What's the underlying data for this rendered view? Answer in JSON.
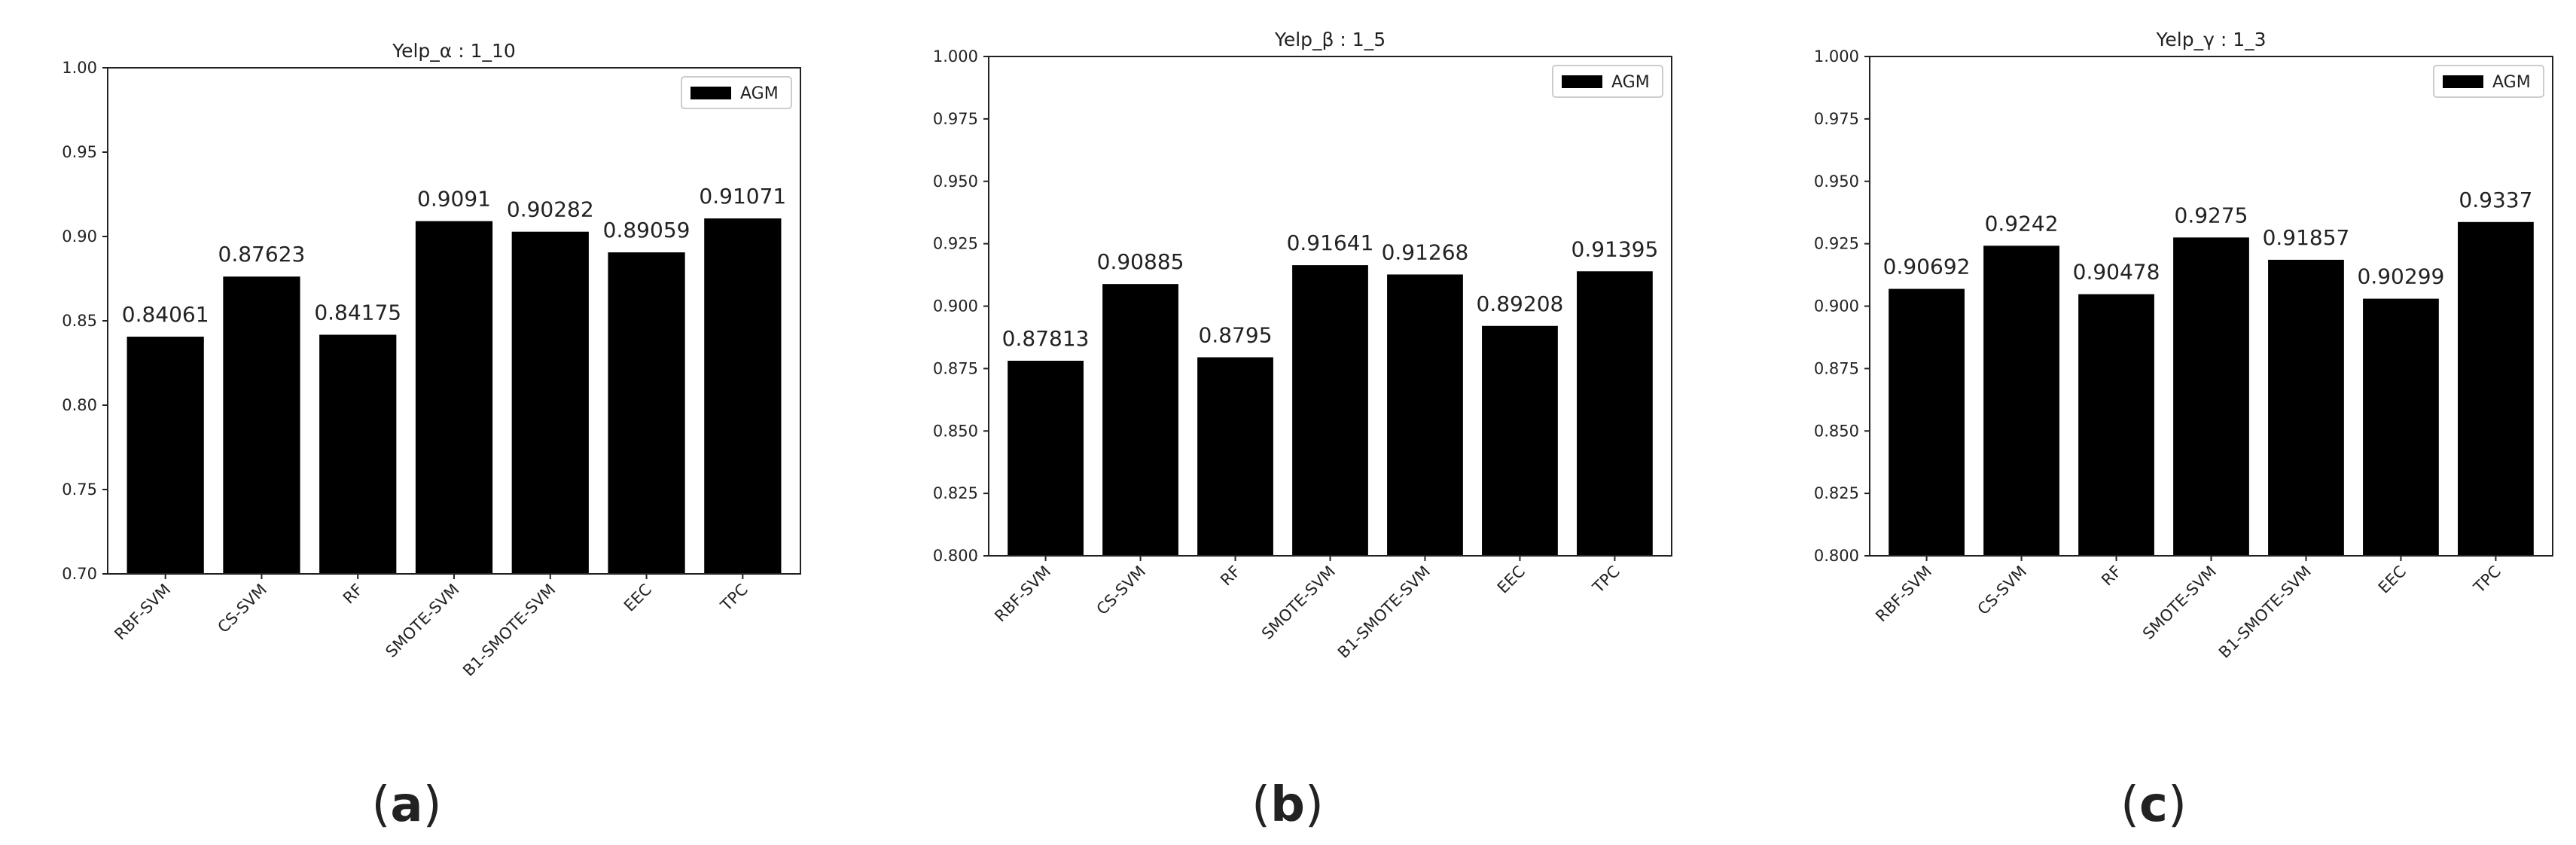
{
  "chart_data": [
    {
      "type": "bar",
      "title": "Yelp_α : 1_10",
      "caption": "a",
      "categories": [
        "RBF-SVM",
        "CS-SVM",
        "RF",
        "SMOTE-SVM",
        "B1-SMOTE-SVM",
        "EEC",
        "TPC"
      ],
      "series": [
        {
          "name": "AGM",
          "values": [
            0.84061,
            0.87623,
            0.84175,
            0.9091,
            0.90282,
            0.89059,
            0.91071
          ],
          "labels": [
            "0.84061",
            "0.87623",
            "0.84175",
            "0.9091",
            "0.90282",
            "0.89059",
            "0.91071"
          ]
        }
      ],
      "ylim": [
        0.7,
        1.0
      ],
      "yticks": [
        "0.70",
        "0.75",
        "0.80",
        "0.85",
        "0.90",
        "0.95",
        "1.00"
      ],
      "legend": "top-right",
      "grid": false,
      "bar_color": "#000000"
    },
    {
      "type": "bar",
      "title": "Yelp_β : 1_5",
      "caption": "b",
      "categories": [
        "RBF-SVM",
        "CS-SVM",
        "RF",
        "SMOTE-SVM",
        "B1-SMOTE-SVM",
        "EEC",
        "TPC"
      ],
      "series": [
        {
          "name": "AGM",
          "values": [
            0.87813,
            0.90885,
            0.8795,
            0.91641,
            0.91268,
            0.89208,
            0.91395
          ],
          "labels": [
            "0.87813",
            "0.90885",
            "0.8795",
            "0.91641",
            "0.91268",
            "0.89208",
            "0.91395"
          ]
        }
      ],
      "ylim": [
        0.8,
        1.0
      ],
      "yticks": [
        "0.800",
        "0.825",
        "0.850",
        "0.875",
        "0.900",
        "0.925",
        "0.950",
        "0.975",
        "1.000"
      ],
      "legend": "top-right",
      "grid": false,
      "bar_color": "#000000"
    },
    {
      "type": "bar",
      "title": "Yelp_γ : 1_3",
      "caption": "c",
      "categories": [
        "RBF-SVM",
        "CS-SVM",
        "RF",
        "SMOTE-SVM",
        "B1-SMOTE-SVM",
        "EEC",
        "TPC"
      ],
      "series": [
        {
          "name": "AGM",
          "values": [
            0.90692,
            0.9242,
            0.90478,
            0.9275,
            0.91857,
            0.90299,
            0.9337
          ],
          "labels": [
            "0.90692",
            "0.9242",
            "0.90478",
            "0.9275",
            "0.91857",
            "0.90299",
            "0.9337"
          ]
        }
      ],
      "ylim": [
        0.8,
        1.0
      ],
      "yticks": [
        "0.800",
        "0.825",
        "0.850",
        "0.875",
        "0.900",
        "0.925",
        "0.950",
        "0.975",
        "1.000"
      ],
      "legend": "top-right",
      "grid": false,
      "bar_color": "#000000"
    }
  ]
}
